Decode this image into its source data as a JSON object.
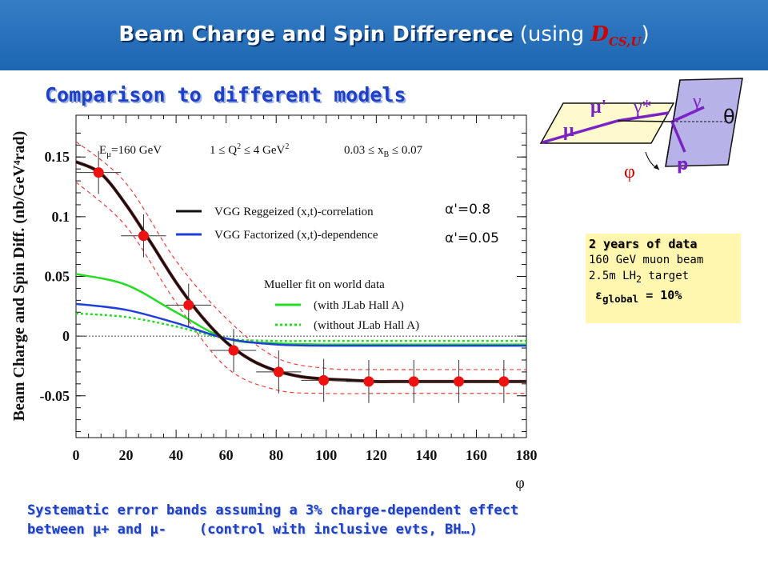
{
  "header": {
    "title_bold": "Beam Charge and Spin Difference",
    "title_plain": " (using ",
    "title_symbol": "D",
    "title_sub": "CS,U",
    "title_close": ")"
  },
  "subtitle": "Comparison to different models",
  "kinematics": {
    "glyphs": [
      "γ",
      "μ'",
      "γ*",
      "θ",
      "μ",
      "p",
      "φ"
    ]
  },
  "info_box": {
    "line1": "2 years of data",
    "line2": "160 GeV muon beam",
    "line3": "2.5m LH",
    "line3_sub": "2",
    "line3_end": " target",
    "line4_sym": "ε",
    "line4_sub": "global",
    "line4_end": " = 10%"
  },
  "footer": {
    "line1": "Systematic error bands assuming a 3% charge-dependent effect",
    "line2": "between μ+ and μ-    (control with inclusive evts, BH…)"
  },
  "chart_data": {
    "type": "line",
    "ylabel": "Beam Charge and Spin Diff. (nb/GeV⁴rad)",
    "xlabel": "φ",
    "xlim": [
      0,
      180
    ],
    "ylim": [
      -0.085,
      0.185
    ],
    "xticks": [
      0,
      20,
      40,
      60,
      80,
      100,
      120,
      140,
      160,
      180
    ],
    "xtick_labels": [
      "0",
      "20",
      "40",
      "60",
      "80",
      "100",
      "120",
      "140",
      "160",
      "180"
    ],
    "yticks": [
      -0.05,
      0,
      0.05,
      0.1,
      0.15
    ],
    "ytick_labels": [
      "-0.05",
      "0",
      "0.05",
      "0.1",
      "0.15"
    ],
    "annotation": "E_μ=160 GeV    1 ≤ Q² ≤ 4 GeV²    0.03 ≤ x_B ≤ 0.07",
    "annotation_parts": [
      "E",
      "μ",
      "=160 GeV",
      "1 ≤ Q",
      "2",
      " ≤ 4 GeV",
      "2",
      "0.03 ≤ x",
      "B",
      " ≤ 0.07"
    ],
    "legend_header": "Mueller fit on world data",
    "alpha_labels": [
      "α'=0.8",
      "α'=0.05"
    ],
    "series": [
      {
        "name": "VGG Reggeized (x,t)-correlation",
        "color": "#111111",
        "style": "solid",
        "x": [
          0,
          10,
          20,
          30,
          40,
          50,
          60,
          70,
          80,
          90,
          100,
          110,
          120,
          130,
          140,
          150,
          160,
          170,
          180
        ],
        "y": [
          0.146,
          0.136,
          0.11,
          0.078,
          0.045,
          0.017,
          -0.005,
          -0.02,
          -0.029,
          -0.034,
          -0.036,
          -0.037,
          -0.038,
          -0.038,
          -0.038,
          -0.038,
          -0.038,
          -0.038,
          -0.038
        ]
      },
      {
        "name": "VGG Factorized (x,t)-dependence",
        "color": "#1f3fd8",
        "style": "solid",
        "x": [
          0,
          20,
          40,
          60,
          80,
          100,
          120,
          140,
          160,
          180
        ],
        "y": [
          0.027,
          0.022,
          0.011,
          -0.002,
          -0.007,
          -0.008,
          -0.008,
          -0.008,
          -0.008,
          -0.008
        ]
      },
      {
        "name": "(with JLab Hall A)",
        "color": "#22dd22",
        "style": "solid",
        "x": [
          0,
          20,
          40,
          60,
          80,
          100,
          120,
          140,
          160,
          180
        ],
        "y": [
          0.052,
          0.043,
          0.02,
          -0.002,
          -0.006,
          -0.007,
          -0.007,
          -0.007,
          -0.007,
          -0.007
        ]
      },
      {
        "name": "(without JLab Hall A)",
        "color": "#22dd22",
        "style": "dotted",
        "x": [
          0,
          20,
          40,
          60,
          80,
          100,
          120,
          140,
          160,
          180
        ],
        "y": [
          0.019,
          0.016,
          0.008,
          -0.002,
          -0.004,
          -0.004,
          -0.004,
          -0.004,
          -0.004,
          -0.004
        ]
      },
      {
        "name": "",
        "color": "#e84040",
        "style": "dashed",
        "x": [
          0,
          20,
          40,
          60,
          80,
          100,
          120,
          140,
          160,
          180
        ],
        "y": [
          0.163,
          0.128,
          0.063,
          0.015,
          -0.018,
          -0.027,
          -0.028,
          -0.028,
          -0.028,
          -0.028
        ]
      },
      {
        "name": "",
        "color": "#e84040",
        "style": "dashed",
        "x": [
          0,
          20,
          40,
          60,
          80,
          100,
          120,
          140,
          160,
          180
        ],
        "y": [
          0.129,
          0.092,
          0.028,
          -0.026,
          -0.045,
          -0.048,
          -0.048,
          -0.048,
          -0.048,
          -0.048
        ]
      },
      {
        "name": "data",
        "type": "points",
        "color": "#ee1111",
        "x": [
          9,
          27,
          45,
          63,
          81,
          99,
          117,
          135,
          153,
          171
        ],
        "y": [
          0.137,
          0.084,
          0.026,
          -0.012,
          -0.03,
          -0.037,
          -0.038,
          -0.038,
          -0.038,
          -0.038
        ],
        "yerr": [
          0.018,
          0.018,
          0.018,
          0.018,
          0.018,
          0.018,
          0.018,
          0.018,
          0.018,
          0.018
        ],
        "xerr": [
          9,
          9,
          9,
          9,
          9,
          9,
          9,
          9,
          9,
          9
        ]
      }
    ]
  }
}
